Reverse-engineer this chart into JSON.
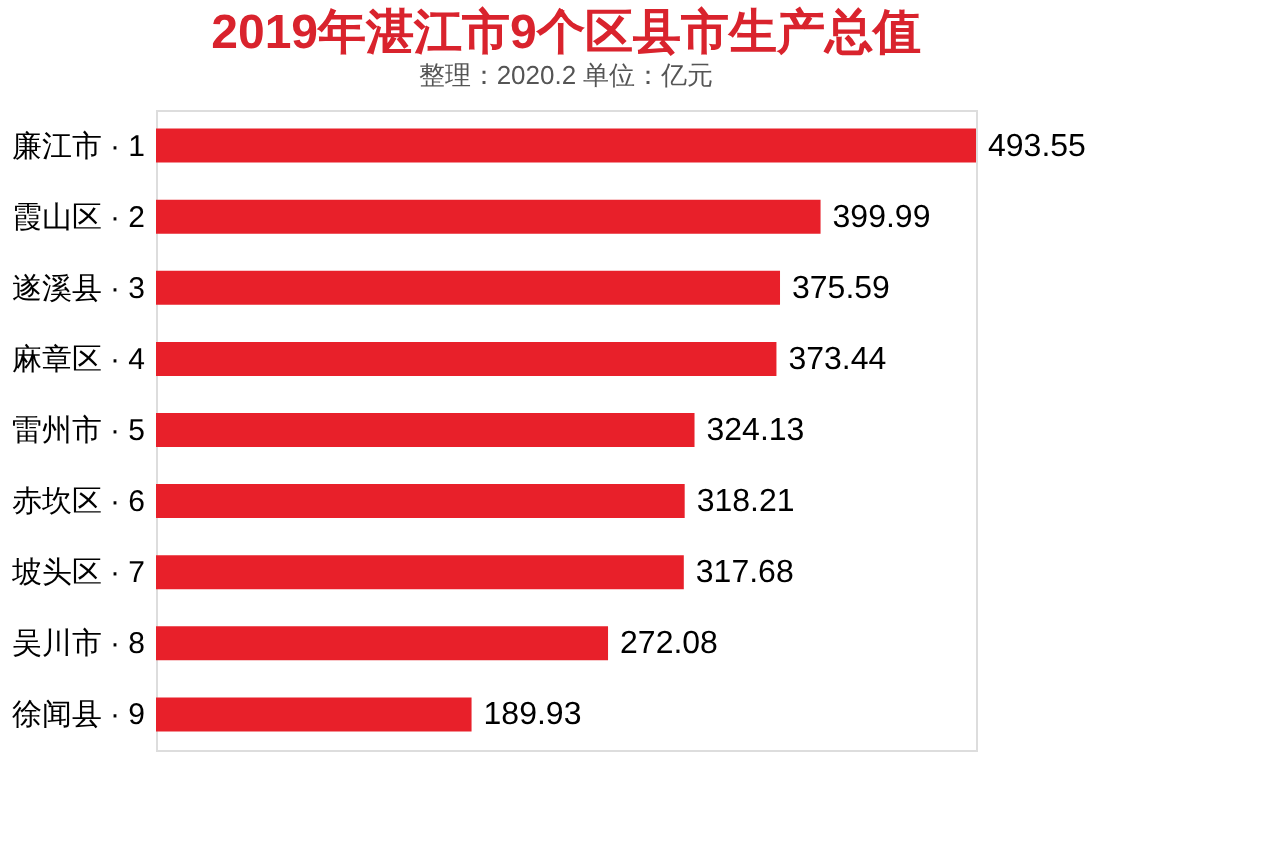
{
  "chart_data": {
    "type": "bar",
    "orientation": "horizontal",
    "title": "2019年湛江市9个区县市生产总值",
    "subtitle": "整理：2020.2   单位：亿元",
    "categories": [
      "廉江市 · 1",
      "霞山区 · 2",
      "遂溪县 · 3",
      "麻章区 · 4",
      "雷州市 · 5",
      "赤坎区 · 6",
      "坡头区 · 7",
      "吴川市 · 8",
      "徐闻县 · 9"
    ],
    "values": [
      493.55,
      399.99,
      375.59,
      373.44,
      324.13,
      318.21,
      317.68,
      272.08,
      189.93
    ],
    "color": "#e8202a",
    "data_labels": true
  }
}
